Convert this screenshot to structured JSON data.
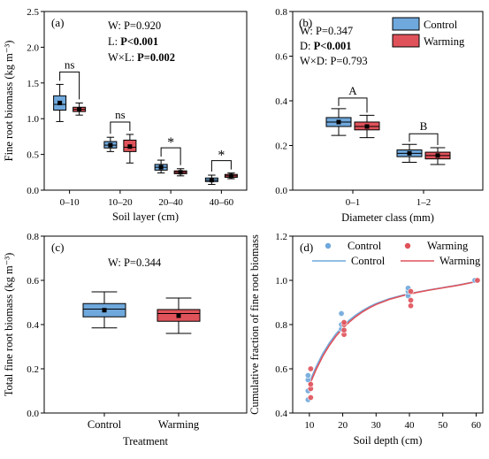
{
  "colors": {
    "control": "#6fa8dc",
    "warming": "#e0525a",
    "control_line": "#6fa8dc",
    "warming_line": "#e0525a"
  },
  "chart_data": [
    {
      "panel": "(a)",
      "type": "box",
      "xlabel": "Soil layer (cm)",
      "ylabel": "Fine root biomass (kg m⁻³)",
      "ylim": [
        0,
        2.5
      ],
      "yticks": [
        "0.0",
        "0.5",
        "1.0",
        "1.5",
        "2.0",
        "2.5"
      ],
      "categories": [
        "0–10",
        "10–20",
        "20–40",
        "40–60"
      ],
      "stats_lines": [
        {
          "prefix": "W: ",
          "value": "P=0.920",
          "bold": false
        },
        {
          "prefix": "L: ",
          "value": "P<0.001",
          "bold": true
        },
        {
          "prefix": "W×L: ",
          "value": "P=0.002",
          "bold": true
        }
      ],
      "significance": [
        "ns",
        "ns",
        "*",
        "*"
      ],
      "series": [
        {
          "name": "Control",
          "boxes": [
            {
              "min": 0.96,
              "q1": 1.12,
              "median": 1.2,
              "q3": 1.32,
              "max": 1.48,
              "mean": 1.22
            },
            {
              "min": 0.54,
              "q1": 0.59,
              "median": 0.63,
              "q3": 0.68,
              "max": 0.74,
              "mean": 0.63
            },
            {
              "min": 0.24,
              "q1": 0.28,
              "median": 0.32,
              "q3": 0.36,
              "max": 0.42,
              "mean": 0.32
            },
            {
              "min": 0.08,
              "q1": 0.12,
              "median": 0.14,
              "q3": 0.17,
              "max": 0.21,
              "mean": 0.14
            }
          ]
        },
        {
          "name": "Warming",
          "boxes": [
            {
              "min": 1.05,
              "q1": 1.1,
              "median": 1.13,
              "q3": 1.16,
              "max": 1.22,
              "mean": 1.13
            },
            {
              "min": 0.38,
              "q1": 0.54,
              "median": 0.6,
              "q3": 0.7,
              "max": 0.78,
              "mean": 0.61
            },
            {
              "min": 0.2,
              "q1": 0.23,
              "median": 0.25,
              "q3": 0.27,
              "max": 0.3,
              "mean": 0.25
            },
            {
              "min": 0.16,
              "q1": 0.18,
              "median": 0.2,
              "q3": 0.22,
              "max": 0.24,
              "mean": 0.2
            }
          ]
        }
      ]
    },
    {
      "panel": "(b)",
      "type": "box",
      "xlabel": "Diameter class (mm)",
      "ylabel": "",
      "ylim": [
        0,
        0.8
      ],
      "yticks": [
        "0.0",
        "0.2",
        "0.4",
        "0.6",
        "0.8"
      ],
      "categories": [
        "0–1",
        "1–2"
      ],
      "stats_lines": [
        {
          "prefix": "W: ",
          "value": "P=0.347",
          "bold": false
        },
        {
          "prefix": "D: ",
          "value": "P<0.001",
          "bold": true
        },
        {
          "prefix": "W×D: ",
          "value": "P=0.793",
          "bold": false
        }
      ],
      "group_letters": [
        "A",
        "B"
      ],
      "legend": [
        "Control",
        "Warming"
      ],
      "series": [
        {
          "name": "Control",
          "boxes": [
            {
              "min": 0.245,
              "q1": 0.285,
              "median": 0.305,
              "q3": 0.325,
              "max": 0.365,
              "mean": 0.305
            },
            {
              "min": 0.125,
              "q1": 0.15,
              "median": 0.165,
              "q3": 0.18,
              "max": 0.205,
              "mean": 0.165
            }
          ]
        },
        {
          "name": "Warming",
          "boxes": [
            {
              "min": 0.235,
              "q1": 0.27,
              "median": 0.285,
              "q3": 0.305,
              "max": 0.335,
              "mean": 0.285
            },
            {
              "min": 0.115,
              "q1": 0.14,
              "median": 0.155,
              "q3": 0.17,
              "max": 0.19,
              "mean": 0.155
            }
          ]
        }
      ]
    },
    {
      "panel": "(c)",
      "type": "box",
      "xlabel": "Treatment",
      "ylabel": "Total fine root biomass (kg m⁻³)",
      "ylim": [
        0,
        0.8
      ],
      "yticks": [
        "0.0",
        "0.2",
        "0.4",
        "0.6",
        "0.8"
      ],
      "categories": [
        "Control",
        "Warming"
      ],
      "stats_lines": [
        {
          "prefix": "W: ",
          "value": "P=0.344",
          "bold": false
        }
      ],
      "series": [
        {
          "name": "Control",
          "boxes": [
            {
              "min": 0.385,
              "q1": 0.435,
              "median": 0.47,
              "q3": 0.495,
              "max": 0.548,
              "mean": 0.465
            }
          ]
        },
        {
          "name": "Warming",
          "boxes": [
            {
              "min": 0.36,
              "q1": 0.415,
              "median": 0.45,
              "q3": 0.468,
              "max": 0.52,
              "mean": 0.44
            }
          ]
        }
      ]
    },
    {
      "panel": "(d)",
      "type": "scatter",
      "xlabel": "Soil depth (cm)",
      "ylabel": "Cumulative fraction of fine root biomass",
      "xlim": [
        5,
        62
      ],
      "ylim": [
        0.4,
        1.2
      ],
      "xticks": [
        "10",
        "20",
        "30",
        "40",
        "50",
        "60"
      ],
      "yticks": [
        "0.4",
        "0.6",
        "0.8",
        "1.0",
        "1.2"
      ],
      "legend": [
        {
          "label": "Control",
          "kind": "point"
        },
        {
          "label": "Warming",
          "kind": "point"
        },
        {
          "label": "Control",
          "kind": "line"
        },
        {
          "label": "Warming",
          "kind": "line"
        }
      ],
      "series": [
        {
          "name": "Control",
          "points": [
            [
              10,
              0.46
            ],
            [
              10,
              0.5
            ],
            [
              10,
              0.55
            ],
            [
              10,
              0.57
            ],
            [
              20,
              0.78
            ],
            [
              20,
              0.8
            ],
            [
              20,
              0.85
            ],
            [
              40,
              0.93
            ],
            [
              40,
              0.95
            ],
            [
              40,
              0.965
            ],
            [
              60,
              1.0
            ]
          ],
          "curve": [
            [
              10,
              0.538
            ],
            [
              12,
              0.608
            ],
            [
              14,
              0.668
            ],
            [
              16,
              0.717
            ],
            [
              18,
              0.758
            ],
            [
              20,
              0.792
            ],
            [
              22,
              0.82
            ],
            [
              24,
              0.844
            ],
            [
              26,
              0.864
            ],
            [
              28,
              0.881
            ],
            [
              30,
              0.895
            ],
            [
              34,
              0.917
            ],
            [
              38,
              0.933
            ],
            [
              42,
              0.946
            ],
            [
              46,
              0.957
            ],
            [
              50,
              0.967
            ],
            [
              55,
              0.98
            ],
            [
              60,
              0.995
            ]
          ]
        },
        {
          "name": "Warming",
          "points": [
            [
              10,
              0.47
            ],
            [
              10,
              0.51
            ],
            [
              10,
              0.53
            ],
            [
              10,
              0.6
            ],
            [
              20,
              0.755
            ],
            [
              20,
              0.775
            ],
            [
              20,
              0.8
            ],
            [
              20,
              0.81
            ],
            [
              40,
              0.885
            ],
            [
              40,
              0.91
            ],
            [
              40,
              0.95
            ],
            [
              60,
              1.0
            ]
          ],
          "curve": [
            [
              10,
              0.526
            ],
            [
              12,
              0.596
            ],
            [
              14,
              0.656
            ],
            [
              16,
              0.706
            ],
            [
              18,
              0.748
            ],
            [
              20,
              0.783
            ],
            [
              22,
              0.812
            ],
            [
              24,
              0.837
            ],
            [
              26,
              0.858
            ],
            [
              28,
              0.876
            ],
            [
              30,
              0.891
            ],
            [
              34,
              0.914
            ],
            [
              38,
              0.931
            ],
            [
              42,
              0.945
            ],
            [
              46,
              0.956
            ],
            [
              50,
              0.966
            ],
            [
              55,
              0.979
            ],
            [
              60,
              0.994
            ]
          ]
        }
      ]
    }
  ]
}
